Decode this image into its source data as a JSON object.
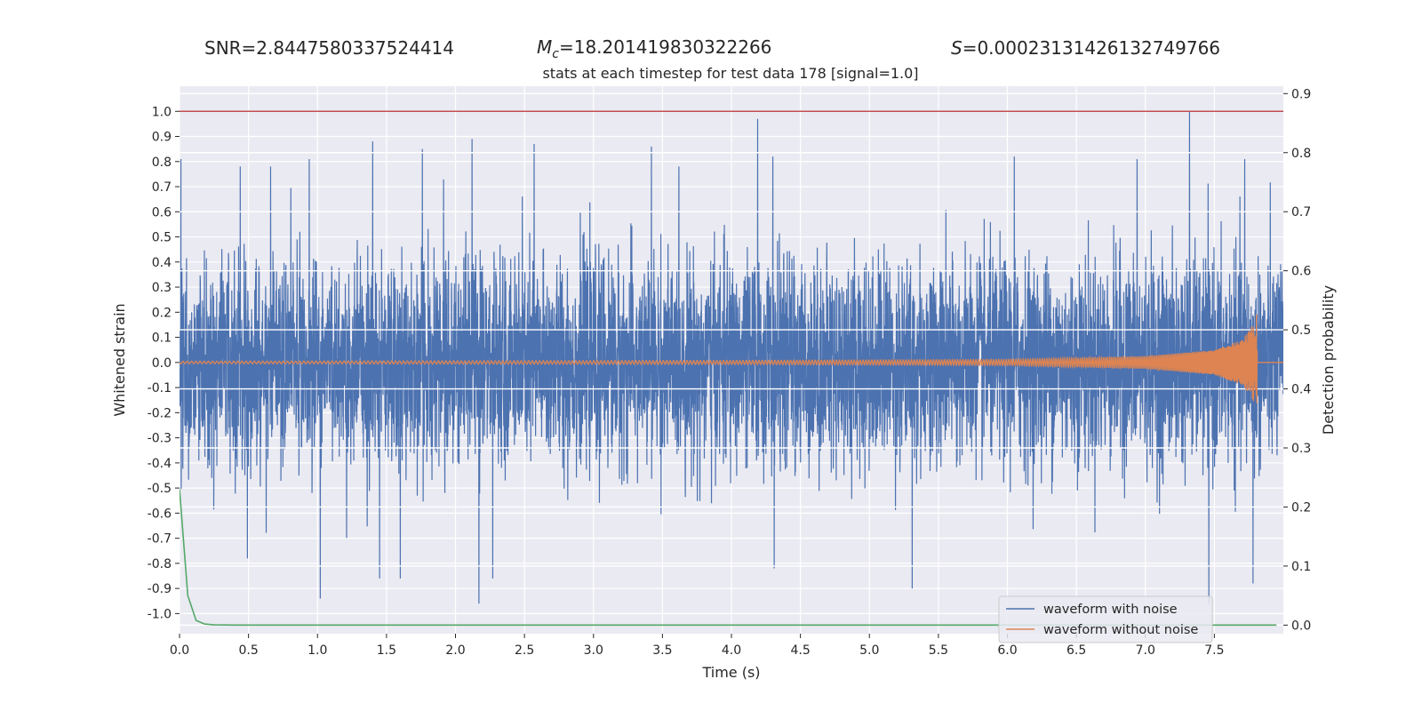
{
  "header": {
    "snr_text": "SNR=2.8447580337524414",
    "mc_symbol": "M",
    "mc_subscript": "c",
    "mc_value": "=18.201419830322266",
    "s_symbol": "S",
    "s_value": "=0.00023131426132749766"
  },
  "chart_data": {
    "type": "line",
    "title": "stats at each timestep for test data 178 [signal=1.0]",
    "xlabel": "Time (s)",
    "ylabel": "Whitened strain",
    "y2label": "Detection probability",
    "xlim": [
      0,
      8
    ],
    "ylim": [
      -1.08,
      1.1
    ],
    "y2lim": [
      -0.0145,
      0.9125
    ],
    "xticks": [
      "0.0",
      "0.5",
      "1.0",
      "1.5",
      "2.0",
      "2.5",
      "3.0",
      "3.5",
      "4.0",
      "4.5",
      "5.0",
      "5.5",
      "6.0",
      "6.5",
      "7.0",
      "7.5"
    ],
    "yticks": [
      "1.0",
      "0.9",
      "0.8",
      "0.7",
      "0.6",
      "0.5",
      "0.4",
      "0.3",
      "0.2",
      "0.1",
      "0.0",
      "-0.1",
      "-0.2",
      "-0.3",
      "-0.4",
      "-0.5",
      "-0.6",
      "-0.7",
      "-0.8",
      "-0.9",
      "-1.0"
    ],
    "y2ticks": [
      "0.9",
      "0.8",
      "0.7",
      "0.6",
      "0.5",
      "0.4",
      "0.3",
      "0.2",
      "0.1",
      "0.0"
    ],
    "grid": true,
    "legend_position": "lower-right",
    "colors": {
      "noise": "#4c72b0",
      "signal": "#dd8452",
      "probability": "#55a868",
      "threshold": "#c44e52",
      "background": "#eaeaf2"
    },
    "series": [
      {
        "name": "waveform with noise",
        "axis": "left",
        "envelope_typical_amplitude": 0.4,
        "peaks": [
          {
            "x": 0.01,
            "y": 0.81
          },
          {
            "x": 0.44,
            "y": 0.78
          },
          {
            "x": 0.66,
            "y": 0.78
          },
          {
            "x": 0.94,
            "y": 0.81
          },
          {
            "x": 1.4,
            "y": 0.88
          },
          {
            "x": 1.76,
            "y": 0.85
          },
          {
            "x": 2.12,
            "y": 0.89
          },
          {
            "x": 2.57,
            "y": 0.87
          },
          {
            "x": 3.42,
            "y": 0.86
          },
          {
            "x": 4.19,
            "y": 0.97
          },
          {
            "x": 4.3,
            "y": 0.82
          },
          {
            "x": 6.05,
            "y": 0.82
          },
          {
            "x": 6.94,
            "y": 0.81
          },
          {
            "x": 7.32,
            "y": 1.0
          },
          {
            "x": 7.72,
            "y": 0.81
          },
          {
            "x": 1.02,
            "y": -0.94
          },
          {
            "x": 1.45,
            "y": -0.86
          },
          {
            "x": 1.6,
            "y": -0.86
          },
          {
            "x": 2.17,
            "y": -0.96
          },
          {
            "x": 2.27,
            "y": -0.86
          },
          {
            "x": 4.31,
            "y": -0.82
          },
          {
            "x": 5.31,
            "y": -0.9
          },
          {
            "x": 7.46,
            "y": -0.96
          },
          {
            "x": 7.78,
            "y": -0.88
          }
        ]
      },
      {
        "name": "waveform without noise",
        "axis": "left",
        "amplitude_points": [
          {
            "x": 0.0,
            "y": 0.005
          },
          {
            "x": 4.0,
            "y": 0.008
          },
          {
            "x": 6.0,
            "y": 0.012
          },
          {
            "x": 7.0,
            "y": 0.025
          },
          {
            "x": 7.5,
            "y": 0.05
          },
          {
            "x": 7.7,
            "y": 0.09
          },
          {
            "x": 7.78,
            "y": 0.15
          },
          {
            "x": 7.81,
            "y": 0.2
          },
          {
            "x": 7.82,
            "y": 0.0
          }
        ]
      },
      {
        "name": "",
        "axis": "right",
        "x": [
          0.0,
          0.06,
          0.12,
          0.18,
          0.25,
          0.4,
          1.0,
          4.0,
          7.95
        ],
        "values": [
          0.23,
          0.05,
          0.008,
          0.002,
          0.0005,
          0.0001,
          0.0,
          0.0,
          0.0
        ]
      },
      {
        "name": "",
        "axis": "left",
        "x": [
          0.0,
          8.0
        ],
        "values": [
          1.0,
          1.0
        ]
      }
    ]
  }
}
